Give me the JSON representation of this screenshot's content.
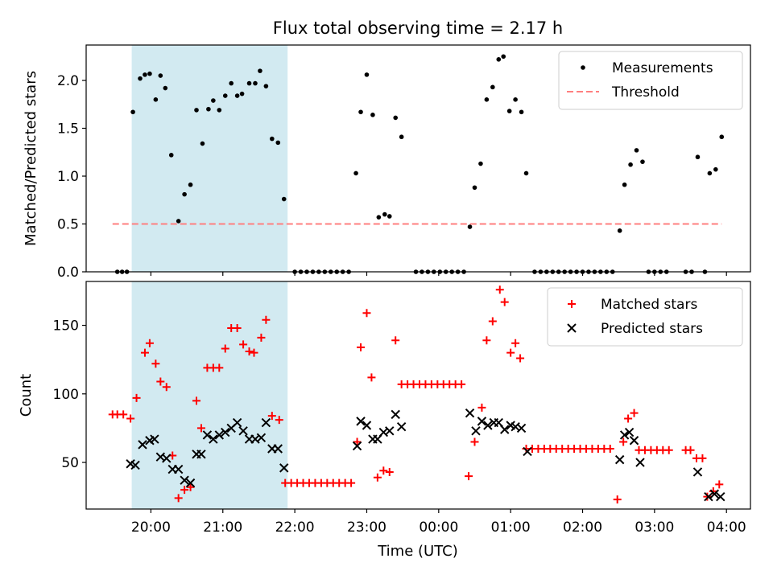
{
  "title": "Flux total observing time = 2.17 h",
  "xlabel": "Time (UTC)",
  "x_ticks": [
    "20:00",
    "21:00",
    "22:00",
    "23:00",
    "00:00",
    "01:00",
    "02:00",
    "03:00",
    "04:00"
  ],
  "shade_color": "#add8e6",
  "chart_data": [
    {
      "type": "scatter",
      "ylabel": "Matched/Predicted stars",
      "ylim": [
        0,
        2.37
      ],
      "yticks": [
        "0.0",
        "0.5",
        "1.0",
        "1.5",
        "2.0"
      ],
      "xlim": [
        "19:06",
        "04:20"
      ],
      "shaded_interval": [
        "19:44",
        "21:54"
      ],
      "legend_position": "top-right",
      "series": [
        {
          "name": "Measurements",
          "marker": "dot",
          "color": "#000000",
          "points": [
            [
              "19:32",
              0
            ],
            [
              "19:36",
              0
            ],
            [
              "19:40",
              0
            ],
            [
              "19:45",
              1.67
            ],
            [
              "19:51",
              2.02
            ],
            [
              "19:55",
              2.06
            ],
            [
              "19:59",
              2.07
            ],
            [
              "20:04",
              1.8
            ],
            [
              "20:08",
              2.05
            ],
            [
              "20:12",
              1.92
            ],
            [
              "20:17",
              1.22
            ],
            [
              "20:23",
              0.53
            ],
            [
              "20:28",
              0.81
            ],
            [
              "20:33",
              0.91
            ],
            [
              "20:38",
              1.69
            ],
            [
              "20:43",
              1.34
            ],
            [
              "20:48",
              1.7
            ],
            [
              "20:52",
              1.79
            ],
            [
              "20:57",
              1.69
            ],
            [
              "21:02",
              1.84
            ],
            [
              "21:07",
              1.97
            ],
            [
              "21:12",
              1.84
            ],
            [
              "21:16",
              1.86
            ],
            [
              "21:22",
              1.97
            ],
            [
              "21:27",
              1.97
            ],
            [
              "21:31",
              2.1
            ],
            [
              "21:36",
              1.94
            ],
            [
              "21:41",
              1.39
            ],
            [
              "21:46",
              1.35
            ],
            [
              "21:51",
              0.76
            ],
            [
              "22:00",
              0
            ],
            [
              "22:05",
              0
            ],
            [
              "22:10",
              0
            ],
            [
              "22:15",
              0
            ],
            [
              "22:20",
              0
            ],
            [
              "22:25",
              0
            ],
            [
              "22:30",
              0
            ],
            [
              "22:35",
              0
            ],
            [
              "22:40",
              0
            ],
            [
              "22:45",
              0
            ],
            [
              "22:51",
              1.03
            ],
            [
              "22:55",
              1.67
            ],
            [
              "23:00",
              2.06
            ],
            [
              "23:05",
              1.64
            ],
            [
              "23:10",
              0.57
            ],
            [
              "23:15",
              0.6
            ],
            [
              "23:19",
              0.58
            ],
            [
              "23:24",
              1.61
            ],
            [
              "23:29",
              1.41
            ],
            [
              "23:41",
              0
            ],
            [
              "23:46",
              0
            ],
            [
              "23:51",
              0
            ],
            [
              "23:56",
              0
            ],
            [
              "00:01",
              0
            ],
            [
              "00:06",
              0
            ],
            [
              "00:11",
              0
            ],
            [
              "00:16",
              0
            ],
            [
              "00:21",
              0
            ],
            [
              "00:26",
              0.47
            ],
            [
              "00:30",
              0.88
            ],
            [
              "00:35",
              1.13
            ],
            [
              "00:40",
              1.8
            ],
            [
              "00:45",
              1.93
            ],
            [
              "00:50",
              2.22
            ],
            [
              "00:54",
              2.25
            ],
            [
              "00:59",
              1.68
            ],
            [
              "01:04",
              1.8
            ],
            [
              "01:09",
              1.67
            ],
            [
              "01:13",
              1.03
            ],
            [
              "01:20",
              0
            ],
            [
              "01:25",
              0
            ],
            [
              "01:30",
              0
            ],
            [
              "01:35",
              0
            ],
            [
              "01:40",
              0
            ],
            [
              "01:45",
              0
            ],
            [
              "01:50",
              0
            ],
            [
              "01:55",
              0
            ],
            [
              "02:00",
              0
            ],
            [
              "02:05",
              0
            ],
            [
              "02:10",
              0
            ],
            [
              "02:15",
              0
            ],
            [
              "02:20",
              0
            ],
            [
              "02:25",
              0
            ],
            [
              "02:31",
              0.43
            ],
            [
              "02:35",
              0.91
            ],
            [
              "02:40",
              1.12
            ],
            [
              "02:45",
              1.27
            ],
            [
              "02:50",
              1.15
            ],
            [
              "02:55",
              0
            ],
            [
              "03:00",
              0
            ],
            [
              "03:05",
              0
            ],
            [
              "03:10",
              0
            ],
            [
              "03:26",
              0
            ],
            [
              "03:31",
              0
            ],
            [
              "03:42",
              0
            ],
            [
              "03:36",
              1.2
            ],
            [
              "03:46",
              1.03
            ],
            [
              "03:51",
              1.07
            ],
            [
              "03:56",
              1.41
            ]
          ]
        },
        {
          "name": "Threshold",
          "marker": "dashed-line",
          "color": "#ff7f7f",
          "y": 0.5,
          "x_range": [
            "19:28",
            "03:56"
          ]
        }
      ]
    },
    {
      "type": "scatter",
      "ylabel": "Count",
      "ylim": [
        16,
        182
      ],
      "yticks": [
        "50",
        "100",
        "150"
      ],
      "xlim": [
        "19:06",
        "04:20"
      ],
      "shaded_interval": [
        "19:44",
        "21:54"
      ],
      "legend_position": "top-right",
      "series": [
        {
          "name": "Matched stars",
          "marker": "plus",
          "color": "#ff0000",
          "points": [
            [
              "19:28",
              85
            ],
            [
              "19:32",
              85
            ],
            [
              "19:37",
              85
            ],
            [
              "19:43",
              82
            ],
            [
              "19:48",
              97
            ],
            [
              "19:55",
              130
            ],
            [
              "19:59",
              137
            ],
            [
              "20:04",
              122
            ],
            [
              "20:08",
              109
            ],
            [
              "20:13",
              105
            ],
            [
              "20:18",
              55
            ],
            [
              "20:23",
              24
            ],
            [
              "20:28",
              30
            ],
            [
              "20:33",
              32
            ],
            [
              "20:38",
              95
            ],
            [
              "20:42",
              75
            ],
            [
              "20:47",
              119
            ],
            [
              "20:52",
              119
            ],
            [
              "20:57",
              119
            ],
            [
              "21:02",
              133
            ],
            [
              "21:07",
              148
            ],
            [
              "21:12",
              148
            ],
            [
              "21:17",
              136
            ],
            [
              "21:22",
              131
            ],
            [
              "21:26",
              130
            ],
            [
              "21:32",
              141
            ],
            [
              "21:36",
              154
            ],
            [
              "21:41",
              84
            ],
            [
              "21:47",
              81
            ],
            [
              "21:52",
              35
            ],
            [
              "21:57",
              35
            ],
            [
              "22:02",
              35
            ],
            [
              "22:07",
              35
            ],
            [
              "22:12",
              35
            ],
            [
              "22:17",
              35
            ],
            [
              "22:22",
              35
            ],
            [
              "22:27",
              35
            ],
            [
              "22:32",
              35
            ],
            [
              "22:37",
              35
            ],
            [
              "22:42",
              35
            ],
            [
              "22:47",
              35
            ],
            [
              "22:52",
              65
            ],
            [
              "22:55",
              134
            ],
            [
              "23:00",
              159
            ],
            [
              "23:04",
              112
            ],
            [
              "23:09",
              39
            ],
            [
              "23:14",
              44
            ],
            [
              "23:19",
              43
            ],
            [
              "23:24",
              139
            ],
            [
              "23:29",
              107
            ],
            [
              "23:34",
              107
            ],
            [
              "23:39",
              107
            ],
            [
              "23:44",
              107
            ],
            [
              "23:49",
              107
            ],
            [
              "23:54",
              107
            ],
            [
              "23:59",
              107
            ],
            [
              "00:04",
              107
            ],
            [
              "00:09",
              107
            ],
            [
              "00:14",
              107
            ],
            [
              "00:19",
              107
            ],
            [
              "00:25",
              40
            ],
            [
              "00:30",
              65
            ],
            [
              "00:36",
              90
            ],
            [
              "00:40",
              139
            ],
            [
              "00:45",
              153
            ],
            [
              "00:51",
              176
            ],
            [
              "00:55",
              167
            ],
            [
              "01:00",
              130
            ],
            [
              "01:04",
              137
            ],
            [
              "01:08",
              126
            ],
            [
              "01:13",
              60
            ],
            [
              "01:18",
              60
            ],
            [
              "01:23",
              60
            ],
            [
              "01:28",
              60
            ],
            [
              "01:33",
              60
            ],
            [
              "01:38",
              60
            ],
            [
              "01:43",
              60
            ],
            [
              "01:48",
              60
            ],
            [
              "01:53",
              60
            ],
            [
              "01:58",
              60
            ],
            [
              "02:03",
              60
            ],
            [
              "02:08",
              60
            ],
            [
              "02:13",
              60
            ],
            [
              "02:18",
              60
            ],
            [
              "02:23",
              60
            ],
            [
              "02:29",
              23
            ],
            [
              "02:34",
              65
            ],
            [
              "02:38",
              82
            ],
            [
              "02:43",
              86
            ],
            [
              "02:47",
              59
            ],
            [
              "02:52",
              59
            ],
            [
              "02:57",
              59
            ],
            [
              "03:02",
              59
            ],
            [
              "03:07",
              59
            ],
            [
              "03:12",
              59
            ],
            [
              "03:26",
              59
            ],
            [
              "03:30",
              59
            ],
            [
              "03:35",
              53
            ],
            [
              "03:40",
              53
            ],
            [
              "03:44",
              25
            ],
            [
              "03:49",
              29
            ],
            [
              "03:54",
              34
            ]
          ]
        },
        {
          "name": "Predicted stars",
          "marker": "x",
          "color": "#000000",
          "points": [
            [
              "19:43",
              49
            ],
            [
              "19:47",
              48
            ],
            [
              "19:53",
              63
            ],
            [
              "19:59",
              66
            ],
            [
              "20:03",
              67
            ],
            [
              "20:08",
              54
            ],
            [
              "20:13",
              53
            ],
            [
              "20:18",
              45
            ],
            [
              "20:23",
              45
            ],
            [
              "20:28",
              37
            ],
            [
              "20:33",
              35
            ],
            [
              "20:38",
              56
            ],
            [
              "20:42",
              56
            ],
            [
              "20:47",
              70
            ],
            [
              "20:52",
              67
            ],
            [
              "20:57",
              70
            ],
            [
              "21:02",
              72
            ],
            [
              "21:07",
              75
            ],
            [
              "21:12",
              79
            ],
            [
              "21:17",
              73
            ],
            [
              "21:22",
              67
            ],
            [
              "21:27",
              67
            ],
            [
              "21:32",
              68
            ],
            [
              "21:36",
              79
            ],
            [
              "21:41",
              60
            ],
            [
              "21:46",
              60
            ],
            [
              "21:51",
              46
            ],
            [
              "22:52",
              62
            ],
            [
              "22:55",
              80
            ],
            [
              "23:00",
              77
            ],
            [
              "23:05",
              67
            ],
            [
              "23:09",
              67
            ],
            [
              "23:14",
              72
            ],
            [
              "23:19",
              73
            ],
            [
              "23:24",
              85
            ],
            [
              "23:29",
              76
            ],
            [
              "00:26",
              86
            ],
            [
              "00:31",
              73
            ],
            [
              "00:36",
              80
            ],
            [
              "00:41",
              77
            ],
            [
              "00:46",
              79
            ],
            [
              "00:50",
              79
            ],
            [
              "00:55",
              74
            ],
            [
              "01:00",
              77
            ],
            [
              "01:04",
              76
            ],
            [
              "01:09",
              75
            ],
            [
              "01:14",
              58
            ],
            [
              "02:31",
              52
            ],
            [
              "02:35",
              70
            ],
            [
              "02:39",
              72
            ],
            [
              "02:43",
              66
            ],
            [
              "02:48",
              50
            ],
            [
              "03:36",
              43
            ],
            [
              "03:45",
              25
            ],
            [
              "03:50",
              27
            ],
            [
              "03:55",
              25
            ]
          ]
        }
      ]
    }
  ]
}
